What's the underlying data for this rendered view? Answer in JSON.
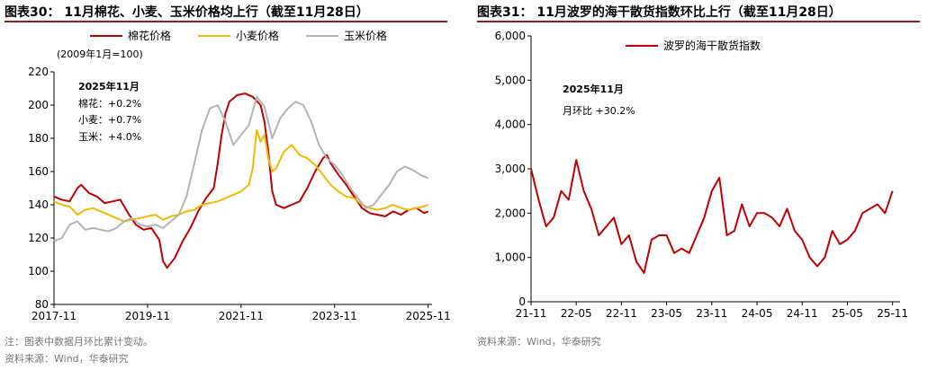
{
  "left": {
    "title": "图表30： 11月棉花、小麦、玉米价格均上行（截至11月28日）",
    "note": "注：图表中数据月环比累计变动。",
    "source": "资料来源：Wind，华泰研究",
    "unit_label": "(2009年1月=100)",
    "annot_title": "2025年11月",
    "annot_lines": [
      "棉花：+0.2%",
      "小麦：+0.7%",
      "玉米：+4.0%"
    ]
  },
  "right": {
    "title": "图表31： 11月波罗的海干散货指数环比上行（截至11月28日）",
    "source": "资料来源：Wind，华泰研究",
    "annot_title": "2025年11月",
    "annot_line": "月环比  +30.2%"
  },
  "chart_data": [
    {
      "type": "line",
      "ylabel": "(2009年1月=100)",
      "ylim": [
        80,
        220
      ],
      "yticks": [
        80,
        100,
        120,
        140,
        160,
        180,
        200,
        220
      ],
      "xlim": [
        "2017-11",
        "2025-12"
      ],
      "xticks": [
        "2017-11",
        "2019-11",
        "2021-11",
        "2023-11",
        "2025-11"
      ],
      "legend": "top",
      "grid": false,
      "series": [
        {
          "name": "棉花价格",
          "color": "#c00000",
          "points": [
            [
              "2017-11",
              145
            ],
            [
              "2018-01",
              143
            ],
            [
              "2018-03",
              142
            ],
            [
              "2018-05",
              150
            ],
            [
              "2018-06",
              152
            ],
            [
              "2018-08",
              147
            ],
            [
              "2018-10",
              145
            ],
            [
              "2018-12",
              141
            ],
            [
              "2019-02",
              142
            ],
            [
              "2019-04",
              143
            ],
            [
              "2019-06",
              135
            ],
            [
              "2019-08",
              128
            ],
            [
              "2019-10",
              125
            ],
            [
              "2019-12",
              126
            ],
            [
              "2020-02",
              119
            ],
            [
              "2020-03",
              106
            ],
            [
              "2020-04",
              102
            ],
            [
              "2020-06",
              108
            ],
            [
              "2020-08",
              118
            ],
            [
              "2020-10",
              126
            ],
            [
              "2020-12",
              136
            ],
            [
              "2021-02",
              144
            ],
            [
              "2021-04",
              150
            ],
            [
              "2021-05",
              165
            ],
            [
              "2021-06",
              182
            ],
            [
              "2021-07",
              195
            ],
            [
              "2021-08",
              202
            ],
            [
              "2021-10",
              206
            ],
            [
              "2021-12",
              207
            ],
            [
              "2022-02",
              205
            ],
            [
              "2022-04",
              200
            ],
            [
              "2022-05",
              190
            ],
            [
              "2022-06",
              172
            ],
            [
              "2022-07",
              148
            ],
            [
              "2022-08",
              140
            ],
            [
              "2022-10",
              138
            ],
            [
              "2022-12",
              140
            ],
            [
              "2023-02",
              142
            ],
            [
              "2023-04",
              150
            ],
            [
              "2023-06",
              160
            ],
            [
              "2023-08",
              168
            ],
            [
              "2023-09",
              170
            ],
            [
              "2023-10",
              165
            ],
            [
              "2023-12",
              158
            ],
            [
              "2024-02",
              152
            ],
            [
              "2024-04",
              145
            ],
            [
              "2024-06",
              138
            ],
            [
              "2024-08",
              135
            ],
            [
              "2024-10",
              134
            ],
            [
              "2024-12",
              133
            ],
            [
              "2025-02",
              136
            ],
            [
              "2025-04",
              134
            ],
            [
              "2025-06",
              137
            ],
            [
              "2025-08",
              138
            ],
            [
              "2025-10",
              135
            ],
            [
              "2025-11",
              136
            ]
          ]
        },
        {
          "name": "小麦价格",
          "color": "#f5b800",
          "points": [
            [
              "2017-11",
              142
            ],
            [
              "2018-01",
              140
            ],
            [
              "2018-03",
              139
            ],
            [
              "2018-05",
              134
            ],
            [
              "2018-07",
              137
            ],
            [
              "2018-09",
              138
            ],
            [
              "2018-11",
              136
            ],
            [
              "2019-01",
              134
            ],
            [
              "2019-03",
              132
            ],
            [
              "2019-05",
              130
            ],
            [
              "2019-07",
              131
            ],
            [
              "2019-09",
              132
            ],
            [
              "2019-11",
              133
            ],
            [
              "2020-01",
              134
            ],
            [
              "2020-03",
              131
            ],
            [
              "2020-05",
              133
            ],
            [
              "2020-07",
              134
            ],
            [
              "2020-09",
              136
            ],
            [
              "2020-11",
              137
            ],
            [
              "2021-01",
              140
            ],
            [
              "2021-03",
              141
            ],
            [
              "2021-05",
              142
            ],
            [
              "2021-07",
              144
            ],
            [
              "2021-09",
              146
            ],
            [
              "2021-11",
              148
            ],
            [
              "2022-01",
              152
            ],
            [
              "2022-02",
              162
            ],
            [
              "2022-03",
              185
            ],
            [
              "2022-04",
              178
            ],
            [
              "2022-05",
              182
            ],
            [
              "2022-06",
              168
            ],
            [
              "2022-07",
              160
            ],
            [
              "2022-08",
              162
            ],
            [
              "2022-10",
              172
            ],
            [
              "2022-12",
              176
            ],
            [
              "2023-02",
              170
            ],
            [
              "2023-04",
              168
            ],
            [
              "2023-06",
              164
            ],
            [
              "2023-08",
              158
            ],
            [
              "2023-10",
              152
            ],
            [
              "2023-12",
              148
            ],
            [
              "2024-02",
              145
            ],
            [
              "2024-04",
              144
            ],
            [
              "2024-06",
              140
            ],
            [
              "2024-08",
              138
            ],
            [
              "2024-10",
              137
            ],
            [
              "2024-12",
              138
            ],
            [
              "2025-02",
              140
            ],
            [
              "2025-04",
              138
            ],
            [
              "2025-06",
              137
            ],
            [
              "2025-08",
              138
            ],
            [
              "2025-10",
              139
            ],
            [
              "2025-11",
              140
            ]
          ]
        },
        {
          "name": "玉米价格",
          "color": "#b3b3b3",
          "points": [
            [
              "2017-11",
              118
            ],
            [
              "2018-01",
              120
            ],
            [
              "2018-03",
              128
            ],
            [
              "2018-05",
              130
            ],
            [
              "2018-07",
              125
            ],
            [
              "2018-09",
              126
            ],
            [
              "2018-11",
              125
            ],
            [
              "2019-01",
              124
            ],
            [
              "2019-03",
              126
            ],
            [
              "2019-05",
              130
            ],
            [
              "2019-07",
              132
            ],
            [
              "2019-09",
              128
            ],
            [
              "2019-11",
              127
            ],
            [
              "2020-01",
              128
            ],
            [
              "2020-03",
              126
            ],
            [
              "2020-05",
              130
            ],
            [
              "2020-07",
              134
            ],
            [
              "2020-09",
              145
            ],
            [
              "2020-11",
              165
            ],
            [
              "2021-01",
              185
            ],
            [
              "2021-03",
              198
            ],
            [
              "2021-05",
              200
            ],
            [
              "2021-07",
              190
            ],
            [
              "2021-09",
              176
            ],
            [
              "2021-11",
              182
            ],
            [
              "2022-01",
              188
            ],
            [
              "2022-03",
              205
            ],
            [
              "2022-05",
              199
            ],
            [
              "2022-07",
              180
            ],
            [
              "2022-09",
              192
            ],
            [
              "2022-11",
              198
            ],
            [
              "2023-01",
              202
            ],
            [
              "2023-03",
              200
            ],
            [
              "2023-05",
              190
            ],
            [
              "2023-07",
              176
            ],
            [
              "2023-09",
              168
            ],
            [
              "2023-11",
              164
            ],
            [
              "2024-01",
              158
            ],
            [
              "2024-03",
              150
            ],
            [
              "2024-05",
              144
            ],
            [
              "2024-07",
              138
            ],
            [
              "2024-09",
              140
            ],
            [
              "2024-11",
              146
            ],
            [
              "2025-01",
              152
            ],
            [
              "2025-03",
              160
            ],
            [
              "2025-05",
              163
            ],
            [
              "2025-07",
              161
            ],
            [
              "2025-09",
              158
            ],
            [
              "2025-11",
              156
            ]
          ]
        }
      ]
    },
    {
      "type": "line",
      "ylim": [
        0,
        6000
      ],
      "yticks": [
        0,
        1000,
        2000,
        3000,
        4000,
        5000,
        6000
      ],
      "xlim": [
        "2021-11",
        "2025-12"
      ],
      "xticks": [
        "21-11",
        "22-05",
        "22-11",
        "23-05",
        "23-11",
        "24-05",
        "24-11",
        "25-05",
        "25-11"
      ],
      "legend": "top",
      "grid": false,
      "series": [
        {
          "name": "波罗的海干散货指数",
          "color": "#c00000",
          "points": [
            [
              "2021-11",
              3000
            ],
            [
              "2021-12",
              2300
            ],
            [
              "2022-01",
              1700
            ],
            [
              "2022-02",
              1900
            ],
            [
              "2022-03",
              2500
            ],
            [
              "2022-04",
              2300
            ],
            [
              "2022-05",
              3200
            ],
            [
              "2022-06",
              2500
            ],
            [
              "2022-07",
              2100
            ],
            [
              "2022-08",
              1500
            ],
            [
              "2022-09",
              1700
            ],
            [
              "2022-10",
              1900
            ],
            [
              "2022-11",
              1300
            ],
            [
              "2022-12",
              1500
            ],
            [
              "2023-01",
              900
            ],
            [
              "2023-02",
              650
            ],
            [
              "2023-03",
              1400
            ],
            [
              "2023-04",
              1500
            ],
            [
              "2023-05",
              1500
            ],
            [
              "2023-06",
              1100
            ],
            [
              "2023-07",
              1200
            ],
            [
              "2023-08",
              1100
            ],
            [
              "2023-09",
              1500
            ],
            [
              "2023-10",
              1900
            ],
            [
              "2023-11",
              2500
            ],
            [
              "2023-12",
              2800
            ],
            [
              "2024-01",
              1500
            ],
            [
              "2024-02",
              1600
            ],
            [
              "2024-03",
              2200
            ],
            [
              "2024-04",
              1700
            ],
            [
              "2024-05",
              2000
            ],
            [
              "2024-06",
              2000
            ],
            [
              "2024-07",
              1900
            ],
            [
              "2024-08",
              1700
            ],
            [
              "2024-09",
              2100
            ],
            [
              "2024-10",
              1600
            ],
            [
              "2024-11",
              1400
            ],
            [
              "2024-12",
              1000
            ],
            [
              "2025-01",
              800
            ],
            [
              "2025-02",
              1000
            ],
            [
              "2025-03",
              1600
            ],
            [
              "2025-04",
              1300
            ],
            [
              "2025-05",
              1400
            ],
            [
              "2025-06",
              1600
            ],
            [
              "2025-07",
              2000
            ],
            [
              "2025-08",
              2100
            ],
            [
              "2025-09",
              2200
            ],
            [
              "2025-10",
              2000
            ],
            [
              "2025-11",
              2500
            ]
          ]
        }
      ]
    }
  ]
}
